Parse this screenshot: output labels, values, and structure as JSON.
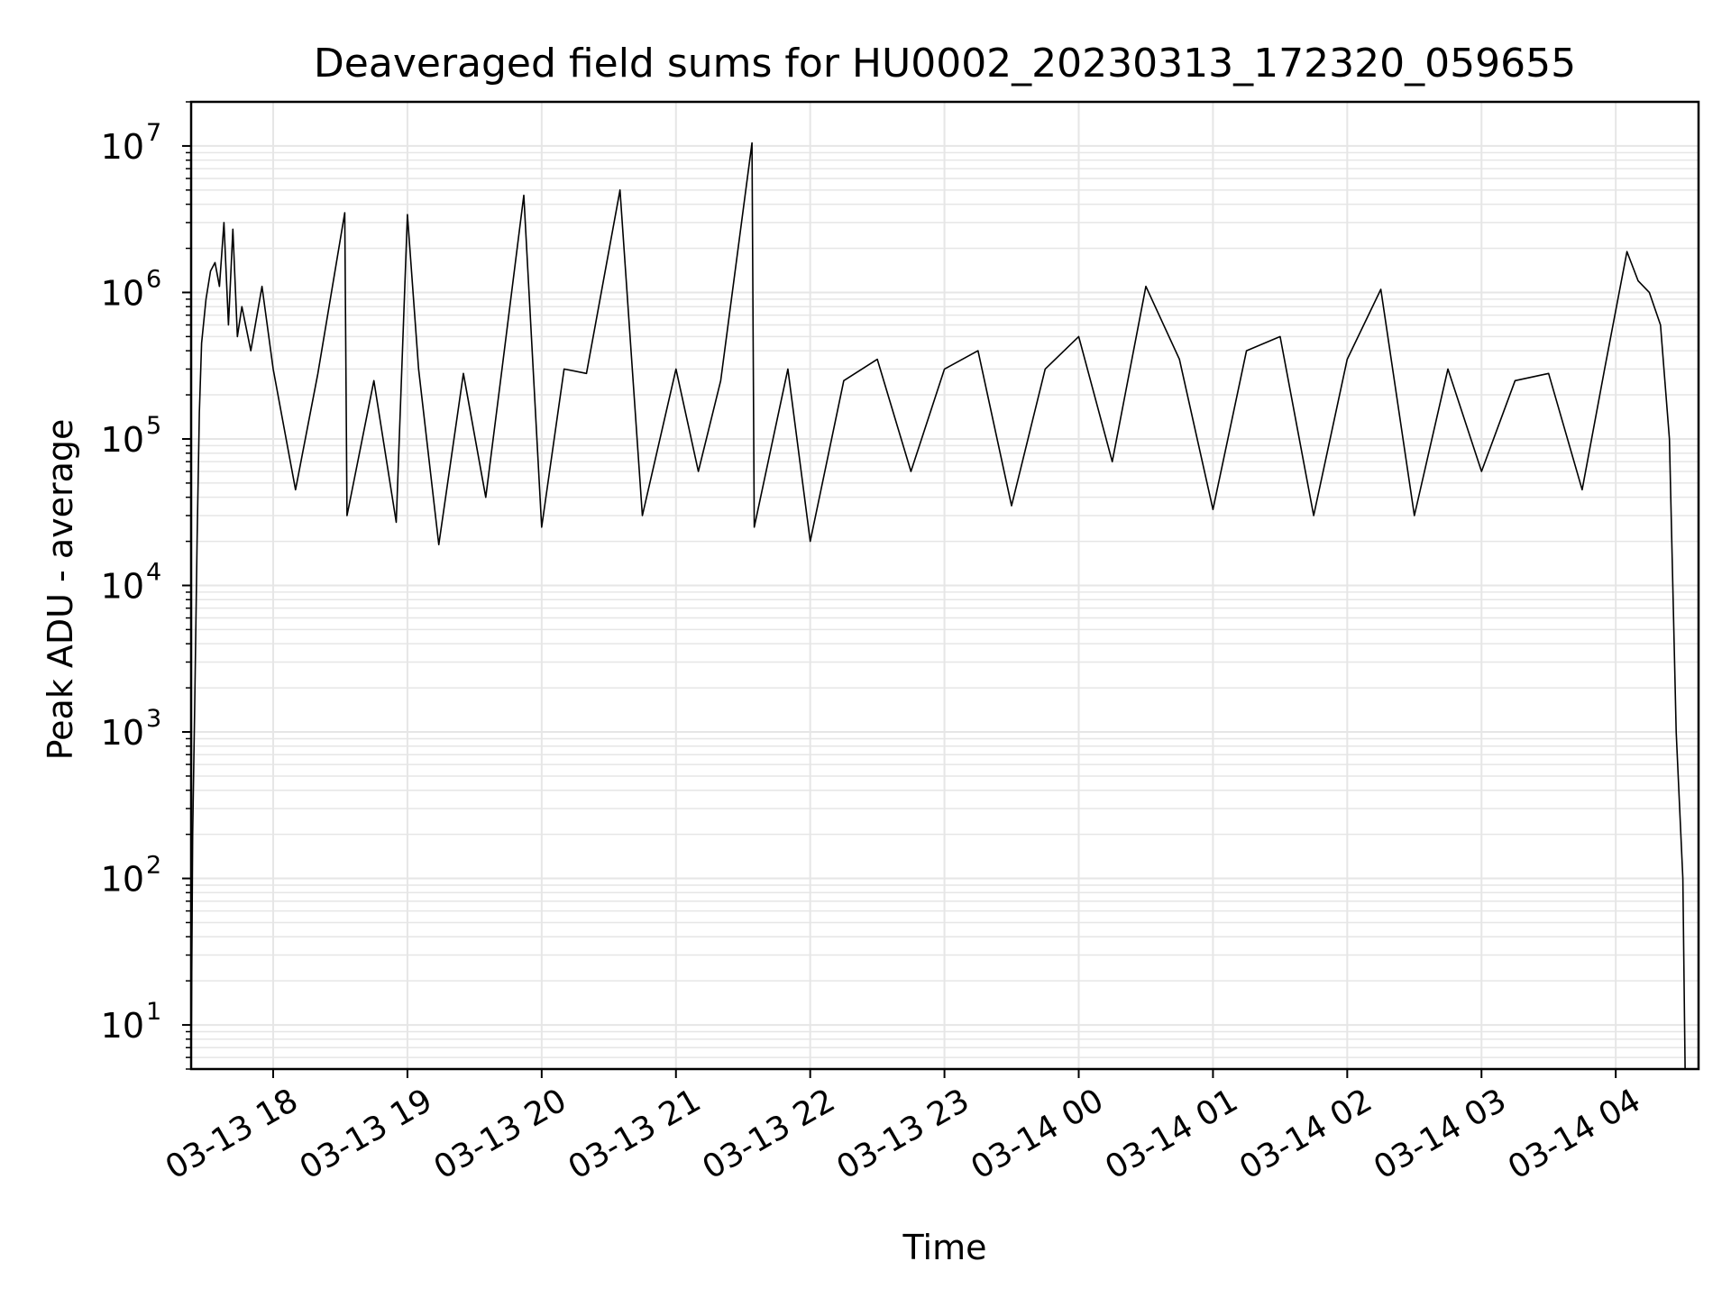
{
  "chart_data": {
    "type": "line",
    "title": "Deaveraged field sums for HU0002_20230313_172320_059655",
    "xlabel": "Time",
    "ylabel": "Peak ADU - average",
    "y_scale": "log",
    "ylim": [
      5,
      20000000
    ],
    "xlim": [
      "2023-03-13 17:23:20",
      "2023-03-14 04:37:00"
    ],
    "grid": true,
    "line_color": "#000000",
    "grid_color": "#e6e6e6",
    "x_ticks": [
      {
        "value": "2023-03-13 18:00",
        "label": "03-13 18"
      },
      {
        "value": "2023-03-13 19:00",
        "label": "03-13 19"
      },
      {
        "value": "2023-03-13 20:00",
        "label": "03-13 20"
      },
      {
        "value": "2023-03-13 21:00",
        "label": "03-13 21"
      },
      {
        "value": "2023-03-13 22:00",
        "label": "03-13 22"
      },
      {
        "value": "2023-03-13 23:00",
        "label": "03-13 23"
      },
      {
        "value": "2023-03-14 00:00",
        "label": "03-14 00"
      },
      {
        "value": "2023-03-14 01:00",
        "label": "03-14 01"
      },
      {
        "value": "2023-03-14 02:00",
        "label": "03-14 02"
      },
      {
        "value": "2023-03-14 03:00",
        "label": "03-14 03"
      },
      {
        "value": "2023-03-14 04:00",
        "label": "03-14 04"
      }
    ],
    "y_ticks": [
      {
        "value": 10,
        "base": "10",
        "exp": "1"
      },
      {
        "value": 100,
        "base": "10",
        "exp": "2"
      },
      {
        "value": 1000,
        "base": "10",
        "exp": "3"
      },
      {
        "value": 10000,
        "base": "10",
        "exp": "4"
      },
      {
        "value": 100000,
        "base": "10",
        "exp": "5"
      },
      {
        "value": 1000000,
        "base": "10",
        "exp": "6"
      },
      {
        "value": 10000000,
        "base": "10",
        "exp": "7"
      }
    ],
    "series": [
      {
        "points": [
          [
            "2023-03-13 17:23:20",
            5
          ],
          [
            "2023-03-13 17:24:00",
            200
          ],
          [
            "2023-03-13 17:25:00",
            1700
          ],
          [
            "2023-03-13 17:26:00",
            20000
          ],
          [
            "2023-03-13 17:27:00",
            150000
          ],
          [
            "2023-03-13 17:28:00",
            450000
          ],
          [
            "2023-03-13 17:30:00",
            900000
          ],
          [
            "2023-03-13 17:32:00",
            1400000
          ],
          [
            "2023-03-13 17:34:00",
            1600000
          ],
          [
            "2023-03-13 17:36:00",
            1100000
          ],
          [
            "2023-03-13 17:38:00",
            3000000
          ],
          [
            "2023-03-13 17:40:00",
            600000
          ],
          [
            "2023-03-13 17:42:00",
            2700000
          ],
          [
            "2023-03-13 17:44:00",
            500000
          ],
          [
            "2023-03-13 17:46:00",
            800000
          ],
          [
            "2023-03-13 17:50:00",
            400000
          ],
          [
            "2023-03-13 17:55:00",
            1100000
          ],
          [
            "2023-03-13 18:00:00",
            300000
          ],
          [
            "2023-03-13 18:10:00",
            45000
          ],
          [
            "2023-03-13 18:20:00",
            280000
          ],
          [
            "2023-03-13 18:32:00",
            3500000
          ],
          [
            "2023-03-13 18:33:00",
            30000
          ],
          [
            "2023-03-13 18:45:00",
            250000
          ],
          [
            "2023-03-13 18:55:00",
            27000
          ],
          [
            "2023-03-13 19:00:00",
            3400000
          ],
          [
            "2023-03-13 19:05:00",
            300000
          ],
          [
            "2023-03-13 19:14:00",
            19000
          ],
          [
            "2023-03-13 19:25:00",
            280000
          ],
          [
            "2023-03-13 19:35:00",
            40000
          ],
          [
            "2023-03-13 19:42:00",
            280000
          ],
          [
            "2023-03-13 19:52:00",
            4600000
          ],
          [
            "2023-03-13 20:00:00",
            25000
          ],
          [
            "2023-03-13 20:10:00",
            300000
          ],
          [
            "2023-03-13 20:20:00",
            280000
          ],
          [
            "2023-03-13 20:35:00",
            5000000
          ],
          [
            "2023-03-13 20:45:00",
            30000
          ],
          [
            "2023-03-13 21:00:00",
            300000
          ],
          [
            "2023-03-13 21:10:00",
            60000
          ],
          [
            "2023-03-13 21:20:00",
            250000
          ],
          [
            "2023-03-13 21:34:00",
            10500000
          ],
          [
            "2023-03-13 21:35:00",
            25000
          ],
          [
            "2023-03-13 21:50:00",
            300000
          ],
          [
            "2023-03-13 22:00:00",
            20000
          ],
          [
            "2023-03-13 22:15:00",
            250000
          ],
          [
            "2023-03-13 22:30:00",
            350000
          ],
          [
            "2023-03-13 22:45:00",
            60000
          ],
          [
            "2023-03-13 23:00:00",
            300000
          ],
          [
            "2023-03-13 23:15:00",
            400000
          ],
          [
            "2023-03-13 23:30:00",
            35000
          ],
          [
            "2023-03-13 23:45:00",
            300000
          ],
          [
            "2023-03-14 00:00:00",
            500000
          ],
          [
            "2023-03-14 00:15:00",
            70000
          ],
          [
            "2023-03-14 00:30:00",
            1100000
          ],
          [
            "2023-03-14 00:45:00",
            350000
          ],
          [
            "2023-03-14 01:00:00",
            33000
          ],
          [
            "2023-03-14 01:15:00",
            400000
          ],
          [
            "2023-03-14 01:30:00",
            500000
          ],
          [
            "2023-03-14 01:45:00",
            30000
          ],
          [
            "2023-03-14 02:00:00",
            350000
          ],
          [
            "2023-03-14 02:15:00",
            1050000
          ],
          [
            "2023-03-14 02:30:00",
            30000
          ],
          [
            "2023-03-14 02:45:00",
            300000
          ],
          [
            "2023-03-14 03:00:00",
            60000
          ],
          [
            "2023-03-14 03:15:00",
            250000
          ],
          [
            "2023-03-14 03:30:00",
            280000
          ],
          [
            "2023-03-14 03:45:00",
            45000
          ],
          [
            "2023-03-14 03:55:00",
            300000
          ],
          [
            "2023-03-14 04:05:00",
            1900000
          ],
          [
            "2023-03-14 04:10:00",
            1200000
          ],
          [
            "2023-03-14 04:15:00",
            1000000
          ],
          [
            "2023-03-14 04:20:00",
            600000
          ],
          [
            "2023-03-14 04:24:00",
            100000
          ],
          [
            "2023-03-14 04:27:00",
            1000
          ],
          [
            "2023-03-14 04:30:00",
            100
          ],
          [
            "2023-03-14 04:31:00",
            5
          ]
        ]
      }
    ]
  }
}
